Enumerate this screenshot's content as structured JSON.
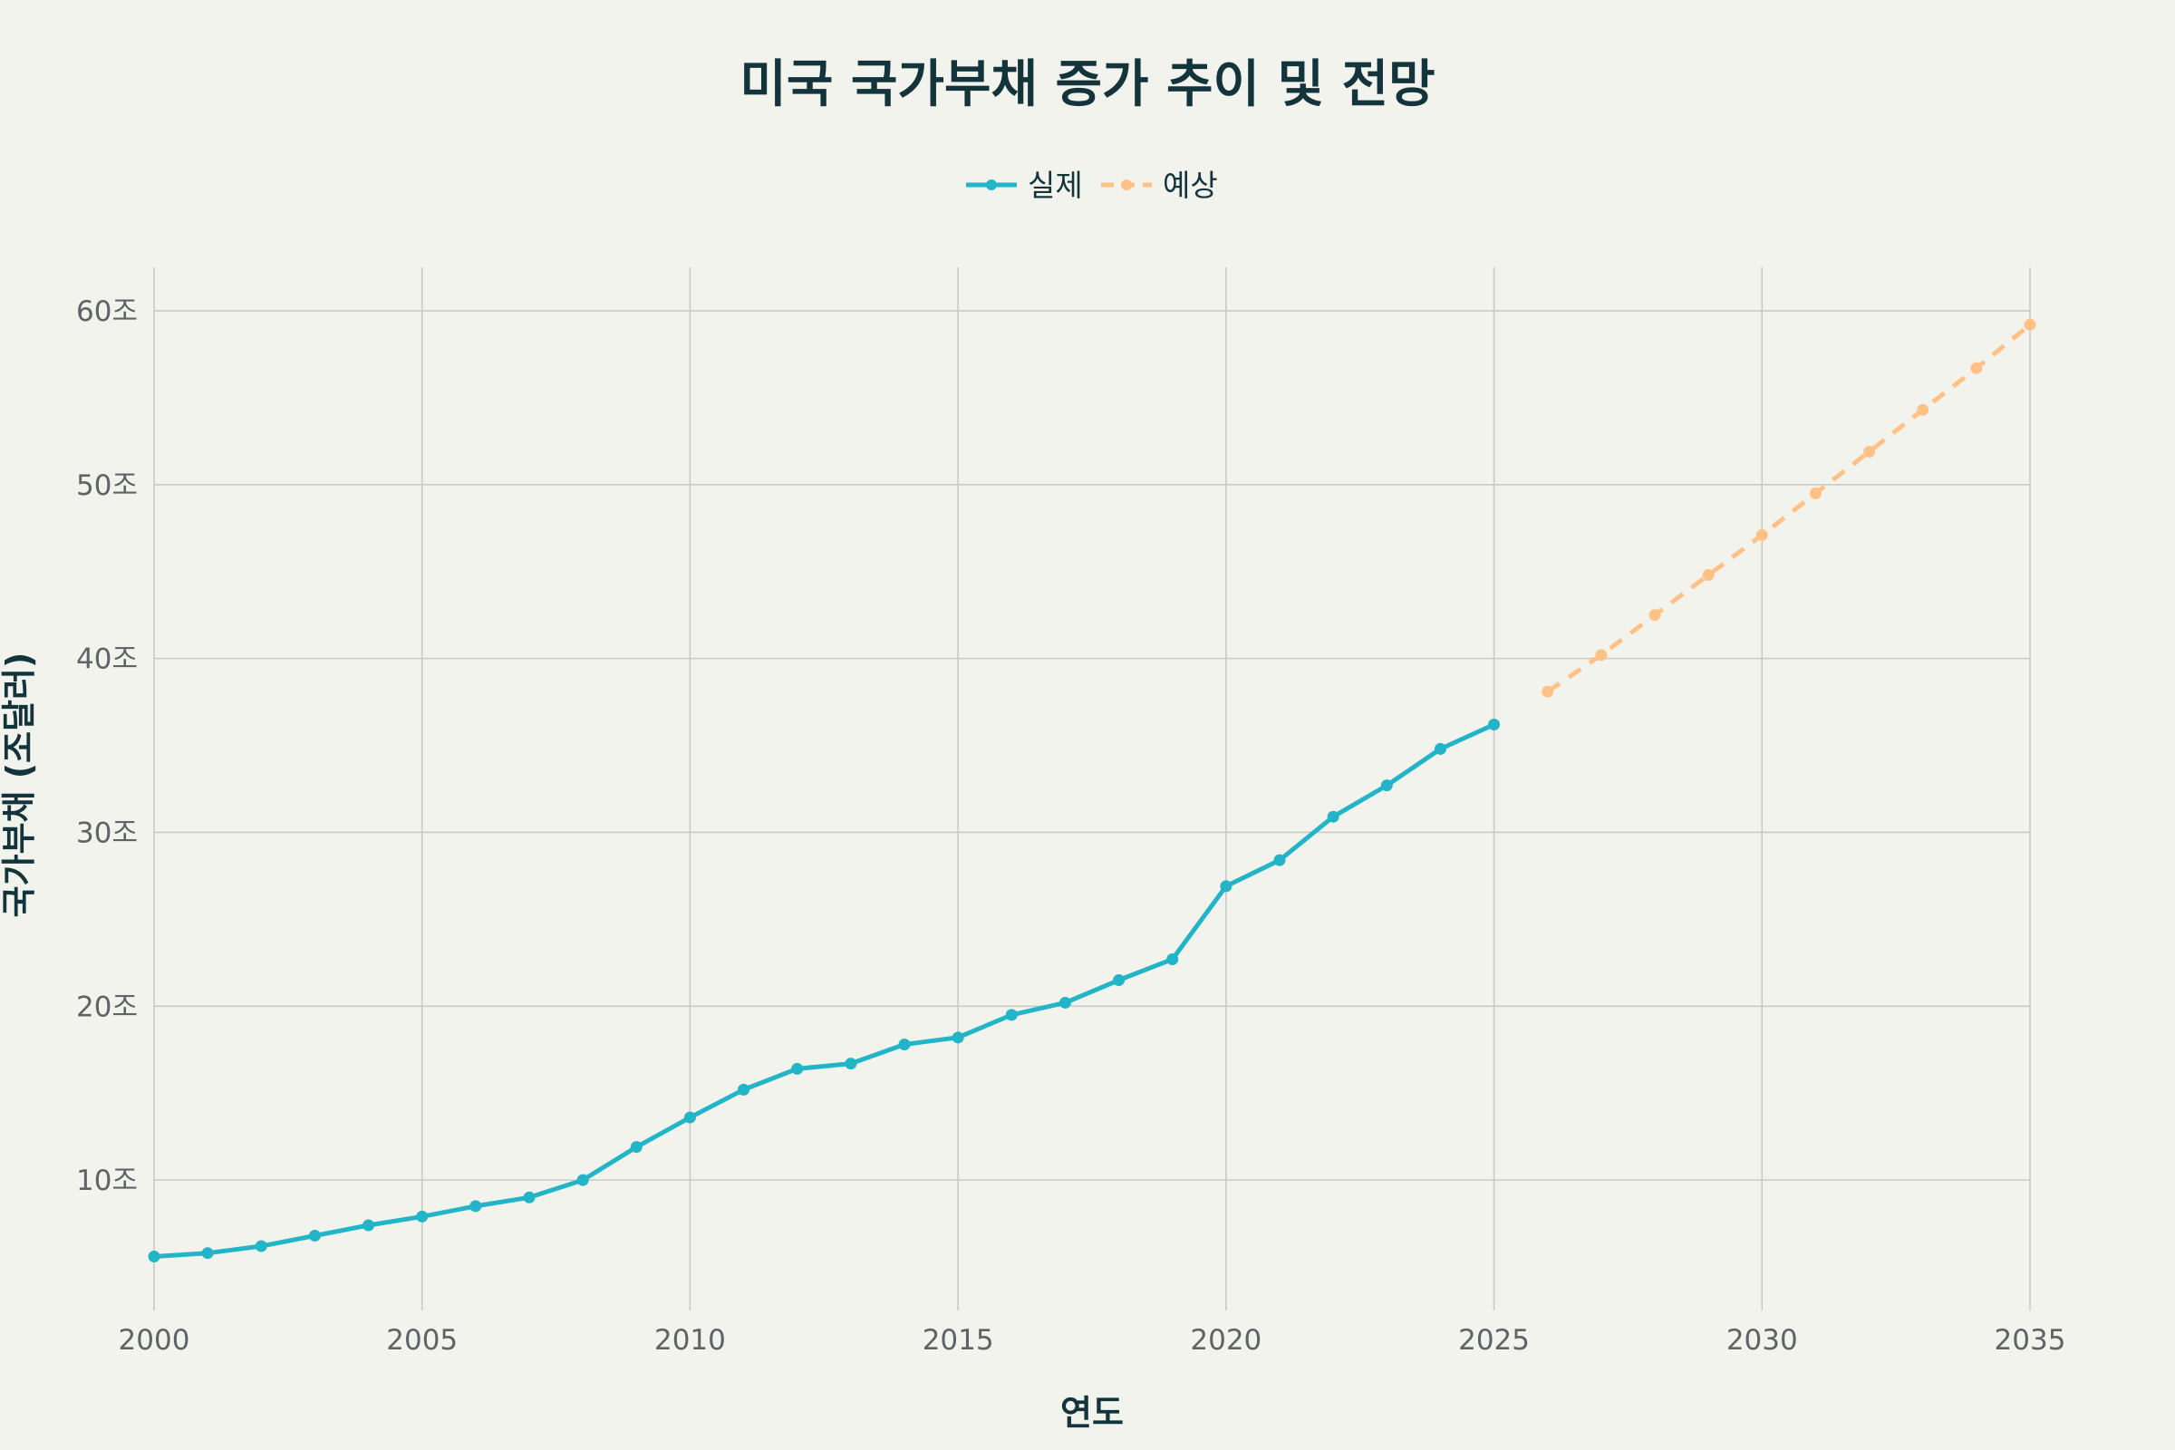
{
  "chart_data": {
    "type": "line",
    "title": "미국 국가부채 증가 추이 및 전망",
    "xlabel": "연도",
    "ylabel": "국가부채 (조달러)",
    "xlim": [
      2000,
      2035
    ],
    "ylim": [
      2.5,
      62.5
    ],
    "x_ticks": [
      2000,
      2005,
      2010,
      2015,
      2020,
      2025,
      2030,
      2035
    ],
    "y_ticks": [
      10,
      20,
      30,
      40,
      50,
      60
    ],
    "y_tick_suffix": "조",
    "grid": true,
    "legend_position": "top-center",
    "series": [
      {
        "name": "실제",
        "color": "#22b5c8",
        "style": "solid",
        "x": [
          2000,
          2001,
          2002,
          2003,
          2004,
          2005,
          2006,
          2007,
          2008,
          2009,
          2010,
          2011,
          2012,
          2013,
          2014,
          2015,
          2016,
          2017,
          2018,
          2019,
          2020,
          2021,
          2022,
          2023,
          2024,
          2025
        ],
        "y": [
          5.6,
          5.8,
          6.2,
          6.8,
          7.4,
          7.9,
          8.5,
          9.0,
          10.0,
          11.9,
          13.6,
          15.2,
          16.4,
          16.7,
          17.8,
          18.2,
          19.5,
          20.2,
          21.5,
          22.7,
          26.9,
          28.4,
          30.9,
          32.7,
          34.8,
          36.2
        ]
      },
      {
        "name": "예상",
        "color": "#ffc185",
        "style": "dashed",
        "x": [
          2026,
          2027,
          2028,
          2029,
          2030,
          2031,
          2032,
          2033,
          2034,
          2035
        ],
        "y": [
          38.1,
          40.2,
          42.5,
          44.8,
          47.1,
          49.5,
          51.9,
          54.3,
          56.7,
          59.2
        ]
      }
    ]
  }
}
